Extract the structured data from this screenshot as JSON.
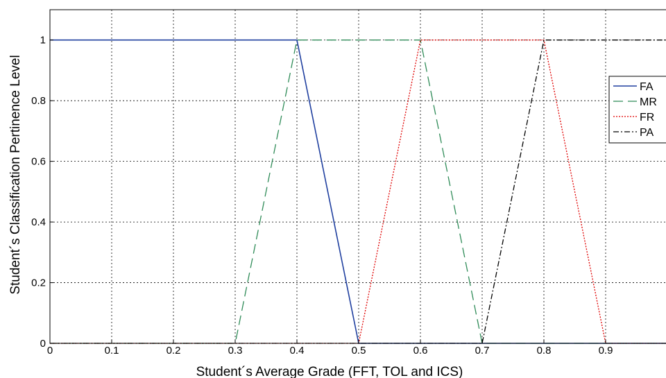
{
  "chart_data": {
    "type": "line",
    "xlabel": "Student´s Average Grade (FFT, TOL and ICS)",
    "ylabel": "Student´s Classification Pertinence Level",
    "xlim": [
      0,
      1
    ],
    "ylim": [
      0,
      1.1
    ],
    "x_ticks": [
      "0",
      "0.1",
      "0.2",
      "0.3",
      "0.4",
      "0.5",
      "0.6",
      "0.7",
      "0.8",
      "0.9"
    ],
    "y_ticks": [
      "0",
      "0.2",
      "0.4",
      "0.6",
      "0.8",
      "1"
    ],
    "grid": true,
    "legend_position": "right",
    "series": [
      {
        "name": "FA",
        "color": "#1f3f9f",
        "dash": "solid",
        "x": [
          0,
          0.4,
          0.5,
          1.0
        ],
        "y": [
          1,
          1,
          0,
          0
        ]
      },
      {
        "name": "MR",
        "color": "#2e8b57",
        "dash": "dashed",
        "x": [
          0,
          0.3,
          0.4,
          0.6,
          0.7,
          1.0
        ],
        "y": [
          0,
          0,
          1,
          1,
          0,
          0
        ]
      },
      {
        "name": "FR",
        "color": "#e00000",
        "dash": "dotted",
        "x": [
          0,
          0.5,
          0.6,
          0.8,
          0.9,
          1.0
        ],
        "y": [
          0,
          0,
          1,
          1,
          0,
          0
        ]
      },
      {
        "name": "PA",
        "color": "#000000",
        "dash": "dashdot",
        "x": [
          0,
          0.7,
          0.8,
          1.0
        ],
        "y": [
          0,
          0,
          1,
          1
        ]
      }
    ]
  }
}
